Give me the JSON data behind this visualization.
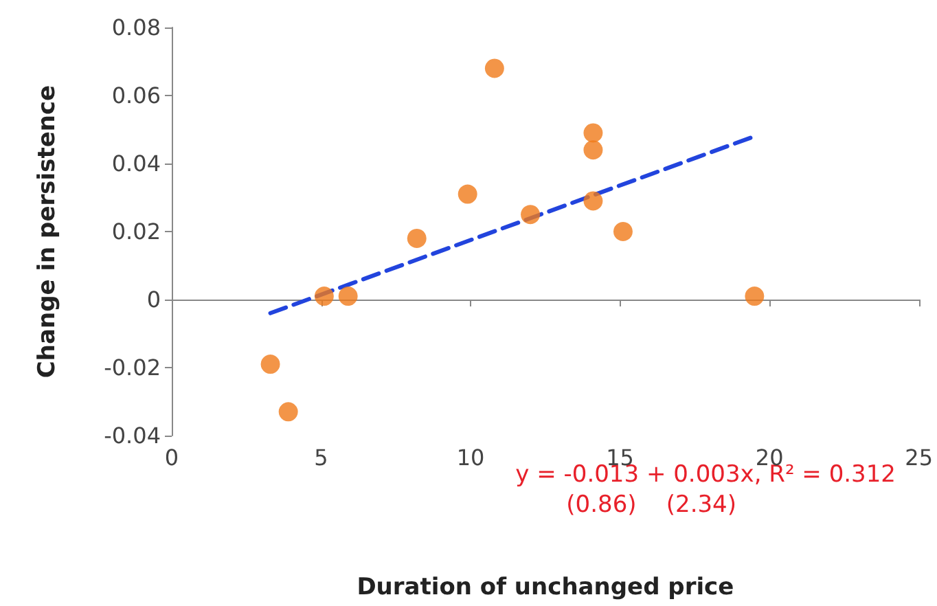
{
  "chart_data": {
    "type": "scatter",
    "xlabel": "Duration of unchanged price",
    "ylabel": "Change in persistence",
    "xlim": [
      0,
      25
    ],
    "xticks": [
      0,
      5,
      10,
      15,
      20,
      25
    ],
    "ylim": [
      -0.04,
      0.08
    ],
    "yticks": [
      -0.04,
      -0.02,
      0,
      0.02,
      0.04,
      0.06,
      0.08
    ],
    "series": [
      {
        "marker": "circle",
        "color": "#f07a1a",
        "x": [
          3.3,
          3.9,
          5.1,
          5.9,
          8.2,
          9.9,
          10.8,
          12.0,
          14.1,
          14.1,
          14.1,
          15.1,
          19.5
        ],
        "values": [
          -0.019,
          -0.033,
          0.001,
          0.001,
          0.018,
          0.031,
          0.068,
          0.025,
          0.049,
          0.044,
          0.029,
          0.02,
          0.001
        ]
      },
      {
        "type": "line",
        "color": "#2244dd",
        "line_style": "dashed",
        "x": [
          3.3,
          19.5
        ],
        "values": [
          -0.004,
          0.048
        ]
      }
    ],
    "annotations": [
      "y = -0.013 + 0.003x, R² = 0.312",
      "(0.86)    (2.34)"
    ]
  }
}
